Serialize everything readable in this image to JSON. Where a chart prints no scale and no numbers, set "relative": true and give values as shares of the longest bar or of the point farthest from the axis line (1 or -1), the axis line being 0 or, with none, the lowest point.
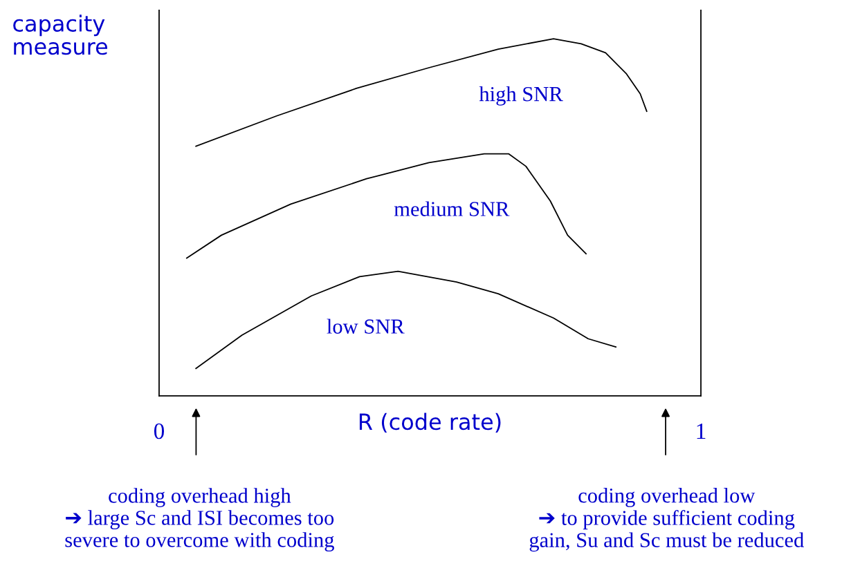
{
  "chart_data": {
    "type": "line",
    "relative": true,
    "xlabel": "R (code rate)",
    "ylabel": "capacity\nmeasure",
    "xlim": [
      0,
      1
    ],
    "xticks": [
      0,
      1
    ],
    "grid": false,
    "legend": false,
    "marker": "none",
    "line_style": "solid",
    "series": [
      {
        "name": "high SNR",
        "color": "#000000",
        "x": [
          0.068,
          0.217,
          0.364,
          0.498,
          0.626,
          0.728,
          0.779,
          0.824,
          0.862,
          0.888,
          0.9
        ],
        "values": [
          0.699,
          0.784,
          0.861,
          0.919,
          0.971,
          1.0,
          0.986,
          0.961,
          0.903,
          0.846,
          0.797
        ]
      },
      {
        "name": "medium SNR",
        "color": "#000000",
        "x": [
          0.051,
          0.115,
          0.243,
          0.383,
          0.498,
          0.6,
          0.645,
          0.677,
          0.722,
          0.754,
          0.788
        ],
        "values": [
          0.386,
          0.45,
          0.537,
          0.608,
          0.653,
          0.678,
          0.678,
          0.643,
          0.546,
          0.45,
          0.398
        ]
      },
      {
        "name": "low SNR",
        "color": "#000000",
        "x": [
          0.068,
          0.153,
          0.281,
          0.37,
          0.441,
          0.549,
          0.626,
          0.728,
          0.792,
          0.843
        ],
        "values": [
          0.077,
          0.17,
          0.28,
          0.334,
          0.349,
          0.319,
          0.286,
          0.218,
          0.16,
          0.137
        ]
      }
    ],
    "annotations": [
      "coding overhead high\n➔ large Sc and ISI becomes too\nsevere to overcome with coding",
      "coding overhead low\n➔ to provide sufficient coding\ngain, Su and Sc must be reduced"
    ]
  }
}
